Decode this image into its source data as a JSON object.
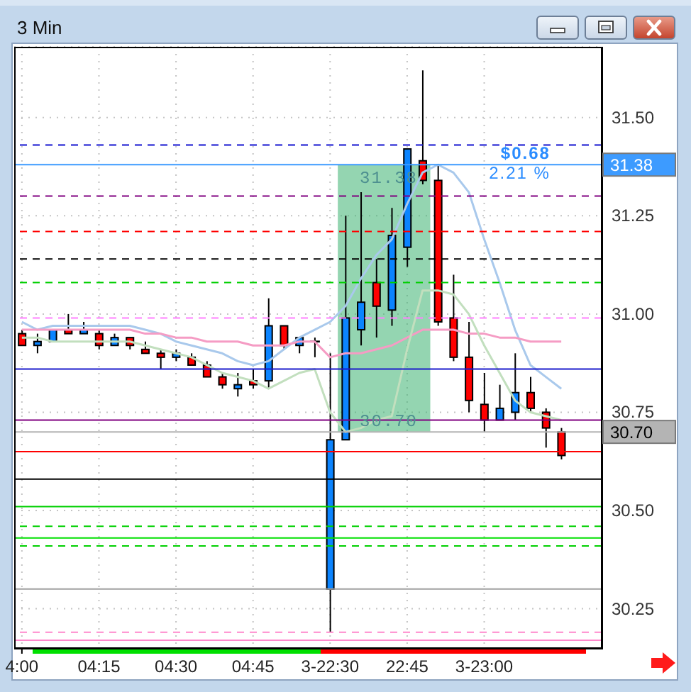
{
  "chart_data": {
    "type": "candlestick",
    "title": "3 Min",
    "categories": [
      "4:00",
      null,
      null,
      null,
      null,
      "04:15",
      null,
      null,
      null,
      null,
      "04:30",
      null,
      null,
      null,
      null,
      "04:45",
      null,
      null,
      null,
      null,
      "3-22:30",
      null,
      null,
      null,
      null,
      "22:45",
      null,
      null,
      null,
      null,
      "3-23:00",
      null,
      null,
      null,
      null,
      null
    ],
    "ohlc": [
      [
        30.95,
        30.96,
        30.92,
        30.92
      ],
      [
        30.92,
        30.95,
        30.9,
        30.93
      ],
      [
        30.93,
        30.96,
        30.93,
        30.96
      ],
      [
        30.96,
        31.0,
        30.95,
        30.95
      ],
      [
        30.95,
        30.98,
        30.95,
        30.96
      ],
      [
        30.95,
        30.96,
        30.91,
        30.92
      ],
      [
        30.92,
        30.95,
        30.92,
        30.94
      ],
      [
        30.94,
        30.94,
        30.91,
        30.92
      ],
      [
        30.91,
        30.93,
        30.9,
        30.9
      ],
      [
        30.9,
        30.91,
        30.86,
        30.89
      ],
      [
        30.89,
        30.91,
        30.88,
        30.9
      ],
      [
        30.89,
        30.9,
        30.87,
        30.87
      ],
      [
        30.87,
        30.88,
        30.84,
        30.84
      ],
      [
        30.84,
        30.85,
        30.81,
        30.82
      ],
      [
        30.81,
        30.85,
        30.79,
        30.82
      ],
      [
        30.83,
        30.86,
        30.81,
        30.82
      ],
      [
        30.83,
        31.04,
        30.81,
        30.97
      ],
      [
        30.97,
        30.97,
        30.91,
        30.92
      ],
      [
        30.92,
        30.94,
        30.9,
        30.94
      ],
      [
        30.93,
        30.94,
        30.89,
        30.93
      ],
      [
        30.3,
        30.9,
        30.19,
        30.68
      ],
      [
        30.68,
        31.25,
        30.68,
        30.99
      ],
      [
        30.96,
        31.31,
        30.92,
        31.03
      ],
      [
        31.08,
        31.14,
        30.94,
        31.02
      ],
      [
        31.01,
        31.27,
        30.97,
        31.2
      ],
      [
        31.17,
        31.42,
        31.12,
        31.42
      ],
      [
        31.39,
        31.62,
        31.33,
        31.34
      ],
      [
        31.34,
        31.38,
        30.97,
        30.98
      ],
      [
        30.99,
        31.1,
        30.88,
        30.89
      ],
      [
        30.89,
        30.98,
        30.75,
        30.78
      ],
      [
        30.77,
        30.85,
        30.7,
        30.73
      ],
      [
        30.73,
        30.82,
        30.73,
        30.76
      ],
      [
        30.75,
        30.9,
        30.73,
        30.8
      ],
      [
        30.8,
        30.84,
        30.75,
        30.76
      ],
      [
        30.75,
        30.76,
        30.66,
        30.71
      ],
      [
        30.7,
        30.71,
        30.63,
        30.64
      ]
    ],
    "colors": [
      "#ff0000",
      "#0b84ff",
      "#0b84ff",
      "#ff0000",
      "#0b84ff",
      "#ff0000",
      "#0b84ff",
      "#ff0000",
      "#ff0000",
      "#ff0000",
      "#0b84ff",
      "#ff0000",
      "#ff0000",
      "#ff0000",
      "#0b84ff",
      "#ff0000",
      "#0b84ff",
      "#ff0000",
      "#0b84ff",
      "#000000",
      "#0b84ff",
      "#0b84ff",
      "#0b84ff",
      "#ff0000",
      "#0b84ff",
      "#0b84ff",
      "#ff0000",
      "#ff0000",
      "#ff0000",
      "#ff0000",
      "#ff0000",
      "#0b84ff",
      "#0b84ff",
      "#ff0000",
      "#ff0000",
      "#ff0000"
    ],
    "series": [
      {
        "type": "line",
        "color": "#a9c9ec",
        "values": [
          30.98,
          30.96,
          30.97,
          30.97,
          30.97,
          30.97,
          30.97,
          30.97,
          30.96,
          30.95,
          30.93,
          30.92,
          30.91,
          30.9,
          30.88,
          30.87,
          30.88,
          30.91,
          30.94,
          30.96,
          30.98,
          31.02,
          31.09,
          31.15,
          31.19,
          31.28,
          31.36,
          31.38,
          31.36,
          31.31,
          31.19,
          31.08,
          30.96,
          30.87,
          30.84,
          30.81
        ]
      },
      {
        "type": "line",
        "color": "#f59cc4",
        "values": [
          30.96,
          30.96,
          30.96,
          30.96,
          30.96,
          30.96,
          30.96,
          30.96,
          30.95,
          30.95,
          30.94,
          30.94,
          30.93,
          30.93,
          30.93,
          30.92,
          30.92,
          30.92,
          30.93,
          30.93,
          30.89,
          30.9,
          30.9,
          30.91,
          30.92,
          30.94,
          30.96,
          30.96,
          30.96,
          30.95,
          30.95,
          30.94,
          30.94,
          30.93,
          30.93,
          30.93
        ]
      },
      {
        "type": "line",
        "color": "#c2dfbe",
        "values": [
          30.94,
          30.94,
          30.93,
          30.93,
          30.93,
          30.93,
          30.93,
          30.93,
          30.92,
          30.91,
          30.9,
          30.89,
          30.87,
          30.85,
          30.84,
          30.83,
          30.81,
          30.83,
          30.85,
          30.86,
          30.75,
          30.7,
          30.71,
          30.73,
          30.74,
          30.91,
          31.06,
          31.06,
          31.05,
          31.0,
          30.92,
          30.85,
          30.78,
          30.75,
          30.74,
          30.73
        ]
      }
    ],
    "ylim": [
      30.15,
      31.68
    ],
    "yticks": [
      30.25,
      {
        "value": 30.5,
        "label": "30.50"
      },
      30.75,
      {
        "value": 31,
        "label": "31.00"
      },
      31.25,
      {
        "value": 31.5,
        "label": "31.50"
      }
    ],
    "grid": true,
    "marker": "none",
    "ref_lines": [
      {
        "axis": "y",
        "value": 31.43,
        "color": "#1010d0",
        "line_style": "dashed"
      },
      {
        "axis": "y",
        "value": 31.38,
        "color": "#3d9bff",
        "label": "31.38"
      },
      {
        "axis": "y",
        "value": 31.3,
        "color": "#800080",
        "line_style": "dashed"
      },
      {
        "axis": "y",
        "value": 31.21,
        "color": "#ff0000",
        "line_style": "dashed"
      },
      {
        "axis": "y",
        "value": 31.14,
        "color": "#000000",
        "line_style": "dashed"
      },
      {
        "axis": "y",
        "value": 31.08,
        "color": "#00d000",
        "line_style": "dashed"
      },
      {
        "axis": "y",
        "value": 30.99,
        "color": "#ff80ff",
        "line_style": "dashed"
      },
      {
        "axis": "y",
        "value": 30.86,
        "color": "#1a1acc"
      },
      {
        "axis": "y",
        "value": 30.73,
        "color": "#800080"
      },
      {
        "axis": "y",
        "value": 30.7,
        "color": "#b4b4b4",
        "label": "30.70"
      },
      {
        "axis": "y",
        "value": 30.65,
        "color": "#ff0000"
      },
      {
        "axis": "y",
        "value": 30.58,
        "color": "#000000"
      },
      {
        "axis": "y",
        "value": 30.51,
        "color": "#00d000"
      },
      {
        "axis": "y",
        "value": 30.46,
        "color": "#00d000",
        "line_style": "dashed"
      },
      {
        "axis": "y",
        "value": 30.43,
        "color": "#00e000"
      },
      {
        "axis": "y",
        "value": 30.41,
        "color": "#00d000",
        "line_style": "dashed"
      },
      {
        "axis": "y",
        "value": 30.3,
        "color": "#a0a0a0"
      },
      {
        "axis": "y",
        "value": 30.19,
        "color": "#ff88cc",
        "line_style": "dashed"
      },
      {
        "axis": "y",
        "value": 30.17,
        "color": "#ff88cc"
      }
    ],
    "bands": [
      {
        "axis": "y",
        "from": 30.7,
        "to": 31.38,
        "color": "#3cb371"
      }
    ],
    "annotations": [
      {
        "text": "31.38",
        "y": 31.38
      },
      {
        "text": "30.70",
        "y": 30.7
      },
      "$0.68",
      "2.21 %"
    ]
  }
}
